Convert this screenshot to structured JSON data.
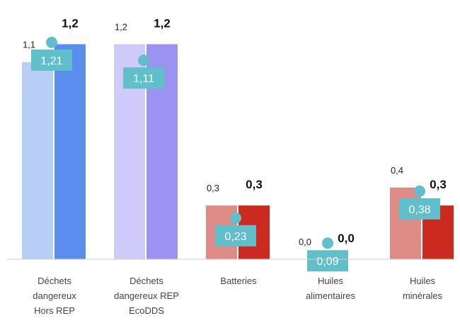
{
  "chart_data": {
    "type": "bar",
    "categories": [
      [
        "Déchets",
        "dangereux",
        "Hors REP"
      ],
      [
        "Déchets",
        "dangereux REP",
        "EcoDDS"
      ],
      [
        "Batteries"
      ],
      [
        "Huiles",
        "alimentaires"
      ],
      [
        "Huiles",
        "minérales"
      ]
    ],
    "series": [
      {
        "values": [
          1.1,
          1.2,
          0.3,
          0.0,
          0.4
        ],
        "labels": [
          "1,1",
          "1,2",
          "0,3",
          "0,0",
          "0,4"
        ],
        "colors": [
          "#b7cef7",
          "#cfcaf8",
          "#e08c86",
          "#e08c86",
          "#e08c86"
        ]
      },
      {
        "values": [
          1.2,
          1.2,
          0.3,
          0.0,
          0.3
        ],
        "labels": [
          "1,2",
          "1,2",
          "0,3",
          "0,0",
          "0,3"
        ],
        "colors": [
          "#5b8def",
          "#9b92f2",
          "#cc2a1e",
          "#cc2a1e",
          "#cc2a1e"
        ]
      },
      {
        "values": [
          1.21,
          1.11,
          0.23,
          0.09,
          0.38
        ],
        "labels": [
          "1,21",
          "1,11",
          "0,23",
          "0,09",
          "0,38"
        ],
        "color": "#5fbfcb"
      }
    ],
    "ylim": [
      0,
      1.25
    ],
    "grid": false
  }
}
